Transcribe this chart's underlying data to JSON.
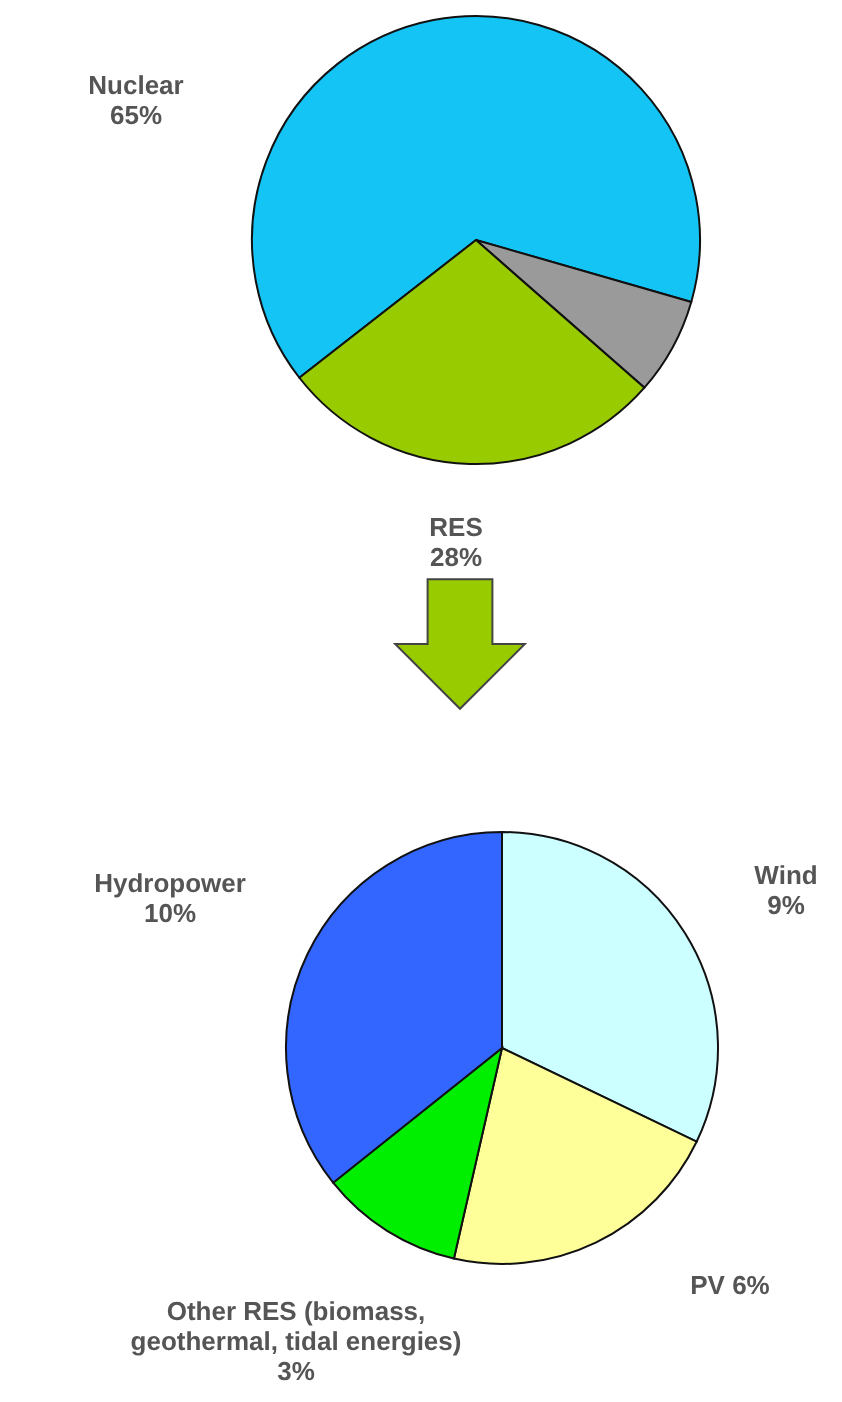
{
  "chart_data": [
    {
      "type": "pie",
      "categories": [
        "Nuclear",
        null,
        "RES"
      ],
      "values": [
        65,
        7,
        28
      ],
      "colors": [
        "#14c4f5",
        "#9a9a9a",
        "#99cc00"
      ],
      "value_labels": [
        "65%",
        null,
        "28%"
      ]
    },
    {
      "type": "pie",
      "categories": [
        "Wind",
        "PV",
        "Other RES (biomass,\ngeothermal, tidal energies)",
        "Hydropower"
      ],
      "values": [
        9,
        6,
        3,
        10
      ],
      "colors": [
        "#ccffff",
        "#ffff99",
        "#00ee00",
        "#3366ff"
      ],
      "value_labels": [
        "9%",
        "6%",
        "3%",
        "10%"
      ]
    }
  ]
}
